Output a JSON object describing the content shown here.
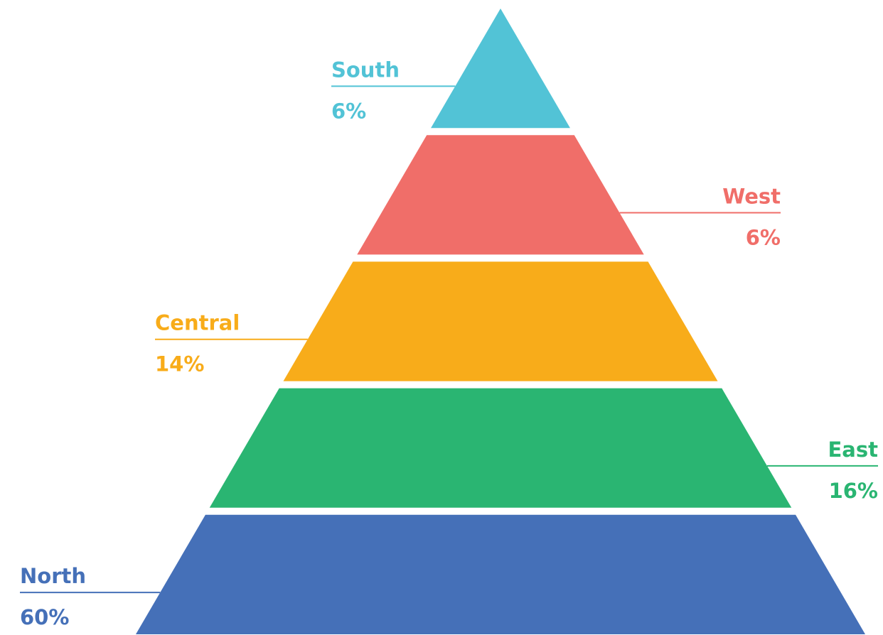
{
  "chart_data": {
    "type": "pyramid",
    "title": "",
    "levels": [
      {
        "label": "South",
        "percent_text": "6%",
        "value": 6,
        "color": "#52C3D6",
        "label_side": "left"
      },
      {
        "label": "West",
        "percent_text": "6%",
        "value": 6,
        "color": "#F06E69",
        "label_side": "right"
      },
      {
        "label": "Central",
        "percent_text": "14%",
        "value": 14,
        "color": "#F8AC1A",
        "label_side": "left"
      },
      {
        "label": "East",
        "percent_text": "16%",
        "value": 16,
        "color": "#2AB572",
        "label_side": "right"
      },
      {
        "label": "North",
        "percent_text": "60%",
        "value": 60,
        "color": "#4570B8",
        "label_side": "left"
      }
    ]
  }
}
